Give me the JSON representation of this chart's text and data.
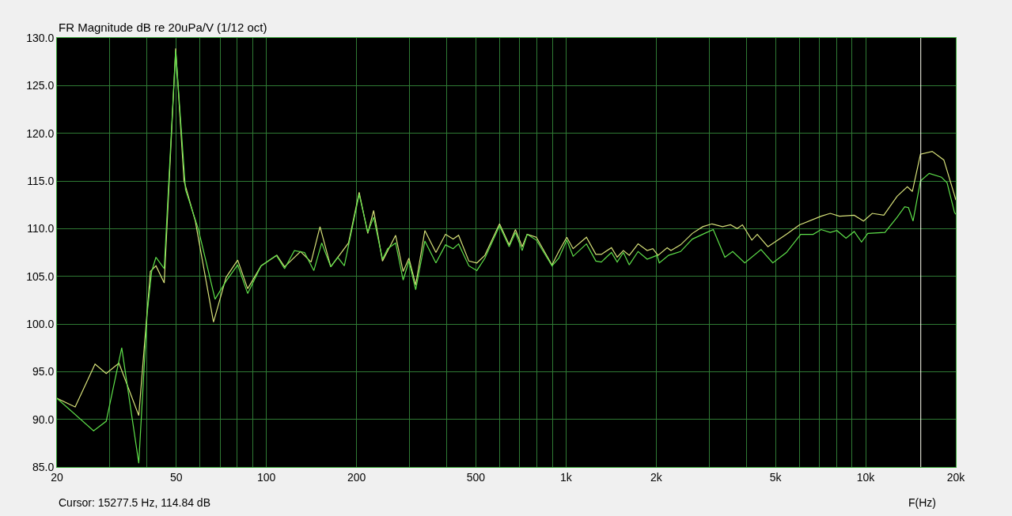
{
  "chart_data": {
    "type": "line",
    "title": "FR Magnitude dB re 20uPa/V (1/12 oct)",
    "xlabel": "F(Hz)",
    "log": "x",
    "grid": true,
    "marker": "none",
    "line_style": "solid",
    "xlim": [
      20,
      20000
    ],
    "xticks": [
      20,
      {
        "value": 30,
        "label": null
      },
      {
        "value": 40,
        "label": null
      },
      50,
      {
        "value": 60,
        "label": null
      },
      {
        "value": 70,
        "label": null
      },
      {
        "value": 80,
        "label": null
      },
      {
        "value": 90,
        "label": null
      },
      100,
      200,
      {
        "value": 300,
        "label": null
      },
      {
        "value": 400,
        "label": null
      },
      500,
      {
        "value": 600,
        "label": null
      },
      {
        "value": 700,
        "label": null
      },
      {
        "value": 800,
        "label": null
      },
      {
        "value": 900,
        "label": null
      },
      {
        "value": 1000,
        "label": "1k"
      },
      {
        "value": 2000,
        "label": "2k"
      },
      {
        "value": 3000,
        "label": null
      },
      {
        "value": 4000,
        "label": null
      },
      {
        "value": 5000,
        "label": "5k"
      },
      {
        "value": 6000,
        "label": null
      },
      {
        "value": 7000,
        "label": null
      },
      {
        "value": 8000,
        "label": null
      },
      {
        "value": 9000,
        "label": null
      },
      {
        "value": 10000,
        "label": "10k"
      },
      {
        "value": 20000,
        "label": "20k"
      }
    ],
    "ylim": [
      85,
      130
    ],
    "yticks": [
      {
        "value": 85,
        "label": "85.0"
      },
      {
        "value": 90,
        "label": "90.0"
      },
      {
        "value": 95,
        "label": "95.0"
      },
      {
        "value": 100,
        "label": "100.0"
      },
      {
        "value": 105,
        "label": "105.0"
      },
      {
        "value": 110,
        "label": "110.0"
      },
      {
        "value": 115,
        "label": "115.0"
      },
      {
        "value": 120,
        "label": "120.0"
      },
      {
        "value": 125,
        "label": "125.0"
      },
      {
        "value": 130,
        "label": "130.0"
      }
    ],
    "annotations": [
      "Cursor: 15277.5 Hz, 114.84 dB"
    ],
    "ref_lines": [
      {
        "axis": "x",
        "value": 15277.5,
        "color": "#fffff0"
      }
    ],
    "series": [
      {
        "color": "#d8e27a",
        "x": [
          20,
          23,
          26.8,
          29.2,
          32.2,
          37.5,
          41,
          42.8,
          45.6,
          49.8,
          53.1,
          57.9,
          66.6,
          73.4,
          80.2,
          86.6,
          96,
          108.4,
          115,
          130,
          141,
          151,
          164,
          188,
          204,
          218,
          228,
          244,
          270,
          286,
          299,
          315,
          338,
          368,
          396,
          420,
          438,
          474,
          504,
          536,
          600,
          646,
          678,
          714,
          742,
          796,
          898,
          946,
          1006,
          1056,
          1170,
          1258,
          1312,
          1418,
          1482,
          1554,
          1626,
          1740,
          1866,
          1948,
          2028,
          2176,
          2240,
          2412,
          2640,
          2860,
          3072,
          3330,
          3540,
          3726,
          3880,
          4170,
          4348,
          4718,
          5440,
          6020,
          7100,
          7620,
          8180,
          9160,
          9840,
          10520,
          11500,
          12740,
          13780,
          14320,
          15240,
          16680,
          18240,
          19800,
          20000
        ],
        "values": [
          92.2,
          91.3,
          95.8,
          94.8,
          95.9,
          90.4,
          105.5,
          106.1,
          104.3,
          128.9,
          115.0,
          110.8,
          100.2,
          104.9,
          106.7,
          103.7,
          106.1,
          107.2,
          106.0,
          107.6,
          106.5,
          110.2,
          106.0,
          108.5,
          113.8,
          109.5,
          111.9,
          106.6,
          109.3,
          105.5,
          106.9,
          104.1,
          109.8,
          107.5,
          109.4,
          108.9,
          109.3,
          106.6,
          106.4,
          107.2,
          110.5,
          108.3,
          109.9,
          108.1,
          109.4,
          109.1,
          106.2,
          107.6,
          109.1,
          107.9,
          109.1,
          107.3,
          107.3,
          108.0,
          107.0,
          107.7,
          107.2,
          108.4,
          107.7,
          107.9,
          107.2,
          108.0,
          107.7,
          108.3,
          109.5,
          110.2,
          110.5,
          110.2,
          110.4,
          110.0,
          110.4,
          108.8,
          109.4,
          108.1,
          109.4,
          110.4,
          111.3,
          111.6,
          111.3,
          111.4,
          110.8,
          111.6,
          111.4,
          113.4,
          114.4,
          113.9,
          117.8,
          118.1,
          117.2,
          113.5,
          113.0
        ]
      },
      {
        "color": "#5ee04a",
        "x": [
          20,
          26.5,
          29.2,
          32.9,
          37.5,
          40,
          41.4,
          42.8,
          45.6,
          49.8,
          53.7,
          59.2,
          67.4,
          73.4,
          80.2,
          86.6,
          96,
          108,
          115,
          124,
          134,
          144,
          153,
          164,
          173,
          182,
          204,
          218,
          228,
          244,
          254,
          270,
          286,
          299,
          315,
          338,
          368,
          396,
          420,
          438,
          474,
          504,
          536,
          600,
          646,
          678,
          714,
          742,
          796,
          898,
          946,
          1006,
          1056,
          1170,
          1258,
          1312,
          1418,
          1482,
          1554,
          1626,
          1740,
          1866,
          2012,
          2048,
          2200,
          2412,
          2640,
          2900,
          3100,
          3390,
          3600,
          3950,
          4476,
          4900,
          5440,
          6070,
          6680,
          7100,
          7620,
          8020,
          8600,
          9160,
          9690,
          10170,
          11600,
          12740,
          13500,
          13900,
          14400,
          15240,
          16300,
          17900,
          18700,
          19800,
          20000
        ],
        "values": [
          92.2,
          88.8,
          89.8,
          97.5,
          85.4,
          101.1,
          105.5,
          107.0,
          105.8,
          128.7,
          114.1,
          110.0,
          102.6,
          104.5,
          106.2,
          103.2,
          106.1,
          107.2,
          105.8,
          107.7,
          107.5,
          105.6,
          108.5,
          106.0,
          107.0,
          106.1,
          113.6,
          109.6,
          111.2,
          106.8,
          107.9,
          108.5,
          104.6,
          106.6,
          103.6,
          108.7,
          106.4,
          108.3,
          107.9,
          108.4,
          106.1,
          105.6,
          106.9,
          110.3,
          108.1,
          109.6,
          107.7,
          109.4,
          108.8,
          106.1,
          106.9,
          108.8,
          107.1,
          108.4,
          106.6,
          106.5,
          107.5,
          106.5,
          107.5,
          106.2,
          107.6,
          106.8,
          107.2,
          106.4,
          107.2,
          107.6,
          108.9,
          109.5,
          109.9,
          107.0,
          107.6,
          106.4,
          107.8,
          106.4,
          107.5,
          109.4,
          109.4,
          109.9,
          109.6,
          109.8,
          109.0,
          109.7,
          108.6,
          109.5,
          109.6,
          111.2,
          112.3,
          112.2,
          110.8,
          115.0,
          115.8,
          115.4,
          114.8,
          111.7,
          111.5
        ]
      }
    ]
  }
}
